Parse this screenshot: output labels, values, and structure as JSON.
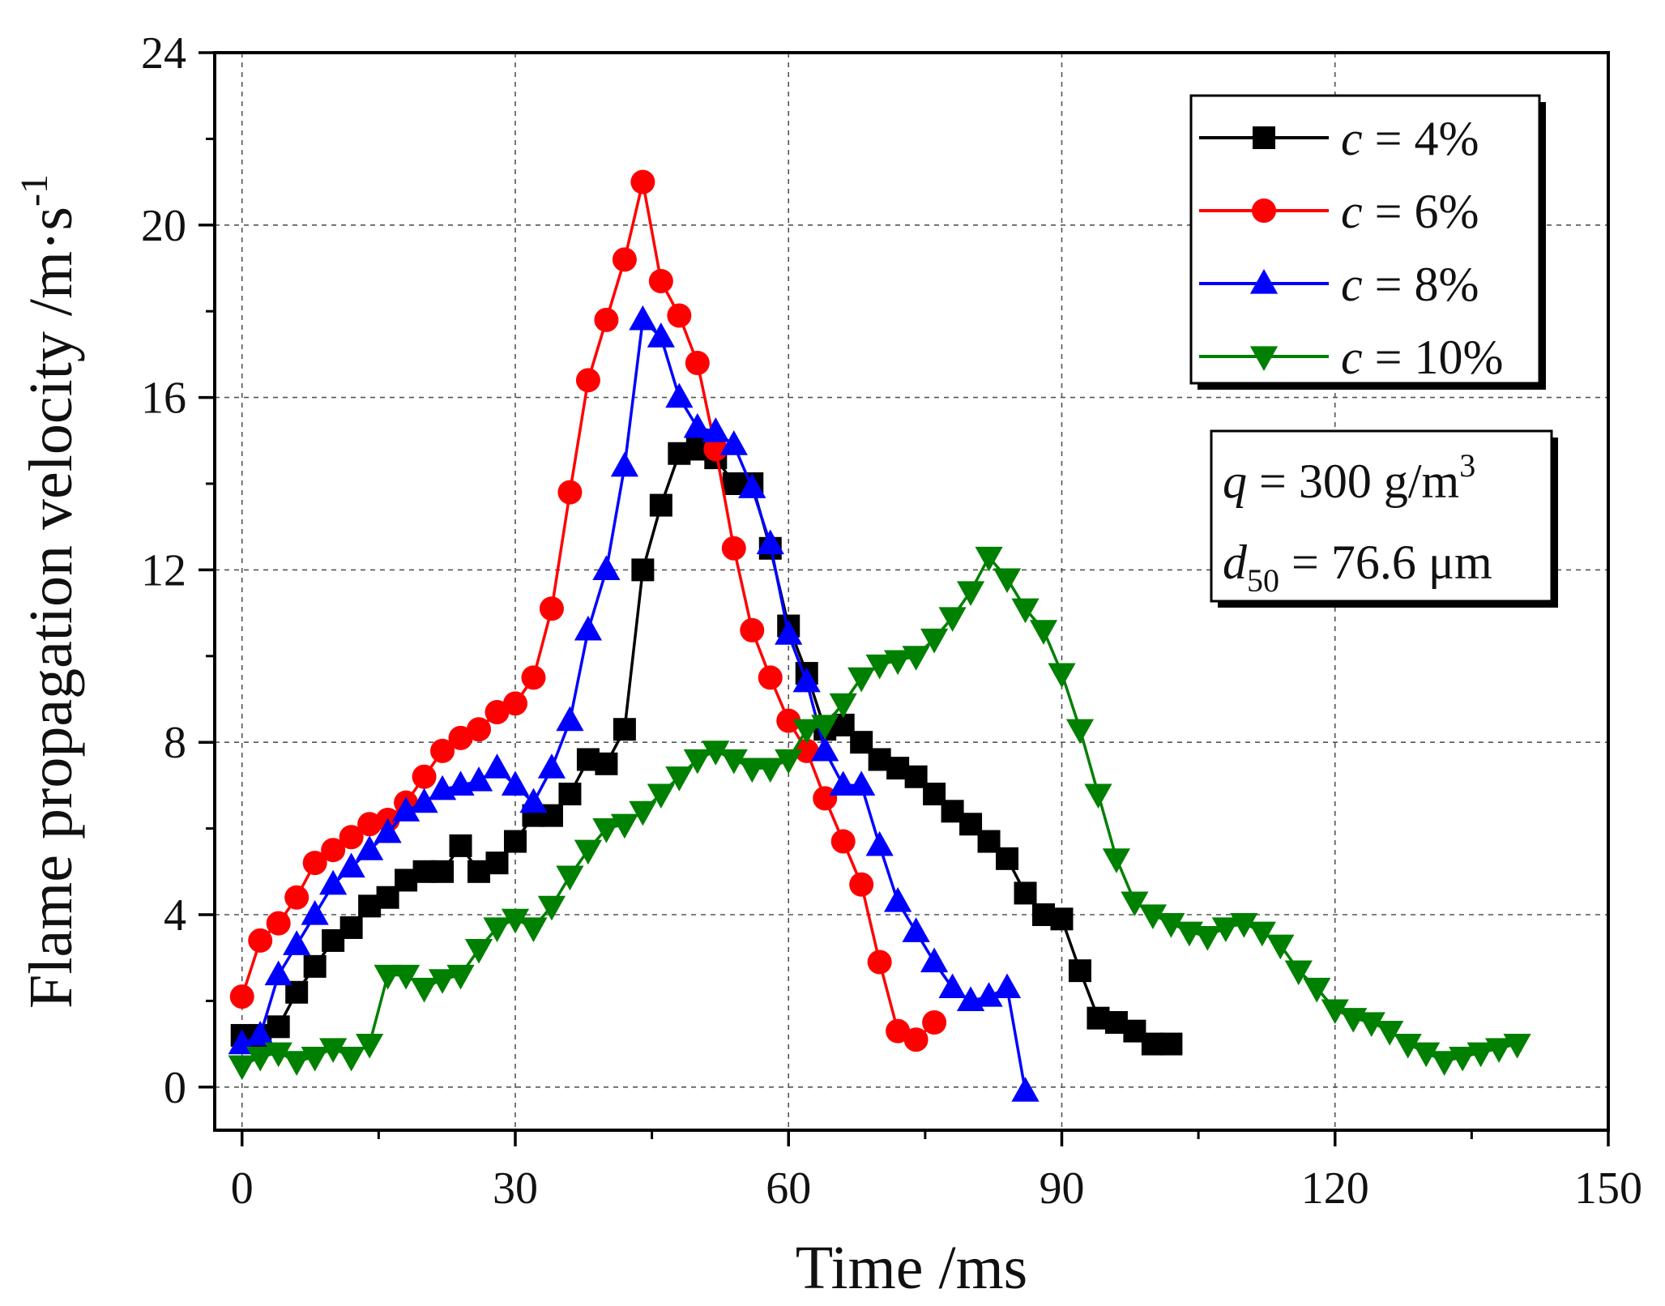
{
  "chart_data": {
    "type": "line",
    "xlabel": "Time /ms",
    "ylabel": "Flame propagation velocity /m·s",
    "ylabel_superscript": "-1",
    "xlim": [
      -3,
      150
    ],
    "ylim": [
      -1,
      24
    ],
    "xticks": [
      0,
      30,
      60,
      90,
      120,
      150
    ],
    "yticks": [
      0,
      4,
      8,
      12,
      16,
      20,
      24
    ],
    "grid": true,
    "legend_position": "top-right",
    "series": [
      {
        "name": "c = 4%",
        "color": "#000000",
        "marker": "square",
        "x": [
          0,
          2,
          4,
          6,
          8,
          10,
          12,
          14,
          16,
          18,
          20,
          22,
          24,
          26,
          28,
          30,
          32,
          34,
          36,
          38,
          40,
          42,
          44,
          46,
          48,
          50,
          52,
          54,
          56,
          58,
          60,
          62,
          64,
          66,
          68,
          70,
          72,
          74,
          76,
          78,
          80,
          82,
          84,
          86,
          88,
          90,
          92,
          94,
          96,
          98,
          100,
          102
        ],
        "y": [
          1.2,
          1.2,
          1.4,
          2.2,
          2.8,
          3.4,
          3.7,
          4.2,
          4.4,
          4.8,
          5.0,
          5.0,
          5.6,
          5.0,
          5.2,
          5.7,
          6.3,
          6.3,
          6.8,
          7.6,
          7.5,
          8.3,
          12.0,
          13.5,
          14.7,
          14.8,
          14.6,
          14.0,
          14.0,
          12.5,
          10.7,
          9.6,
          8.3,
          8.4,
          8.0,
          7.6,
          7.4,
          7.2,
          6.8,
          6.4,
          6.1,
          5.7,
          5.3,
          4.5,
          4.0,
          3.9,
          2.7,
          1.6,
          1.5,
          1.3,
          1.0,
          1.0
        ]
      },
      {
        "name": "c = 6%",
        "color": "#ff0000",
        "marker": "circle",
        "x": [
          0,
          2,
          4,
          6,
          8,
          10,
          12,
          14,
          16,
          18,
          20,
          22,
          24,
          26,
          28,
          30,
          32,
          34,
          36,
          38,
          40,
          42,
          44,
          46,
          48,
          50,
          52,
          54,
          56,
          58,
          60,
          62,
          64,
          66,
          68,
          70,
          72,
          74,
          76
        ],
        "y": [
          2.1,
          3.4,
          3.8,
          4.4,
          5.2,
          5.5,
          5.8,
          6.1,
          6.2,
          6.6,
          7.2,
          7.8,
          8.1,
          8.3,
          8.7,
          8.9,
          9.5,
          11.1,
          13.8,
          16.4,
          17.8,
          19.2,
          21.0,
          18.7,
          17.9,
          16.8,
          14.8,
          12.5,
          10.6,
          9.5,
          8.5,
          7.8,
          6.7,
          5.7,
          4.7,
          2.9,
          1.3,
          1.1,
          1.5
        ]
      },
      {
        "name": "c = 8%",
        "color": "#0000ff",
        "marker": "triangle-up",
        "x": [
          0,
          2,
          4,
          6,
          8,
          10,
          12,
          14,
          16,
          18,
          20,
          22,
          24,
          26,
          28,
          30,
          32,
          34,
          36,
          38,
          40,
          42,
          44,
          46,
          48,
          50,
          52,
          54,
          56,
          58,
          60,
          62,
          64,
          66,
          68,
          70,
          72,
          74,
          76,
          78,
          80,
          82,
          84,
          86
        ],
        "y": [
          1.0,
          1.2,
          2.6,
          3.3,
          4.0,
          4.7,
          5.1,
          5.5,
          5.9,
          6.4,
          6.6,
          6.9,
          7.0,
          7.1,
          7.4,
          7.0,
          6.6,
          7.4,
          8.5,
          10.6,
          12.0,
          14.4,
          17.8,
          17.4,
          16.0,
          15.3,
          15.2,
          14.9,
          13.9,
          12.6,
          10.5,
          9.4,
          7.8,
          7.0,
          7.0,
          5.6,
          4.3,
          3.6,
          2.9,
          2.3,
          2.0,
          2.1,
          2.3,
          -0.1
        ]
      },
      {
        "name": "c = 10%",
        "color": "#008000",
        "marker": "triangle-down",
        "x": [
          0,
          2,
          4,
          6,
          8,
          10,
          12,
          14,
          16,
          18,
          20,
          22,
          24,
          26,
          28,
          30,
          32,
          34,
          36,
          38,
          40,
          42,
          44,
          46,
          48,
          50,
          52,
          54,
          56,
          58,
          60,
          62,
          64,
          66,
          68,
          70,
          72,
          74,
          76,
          78,
          80,
          82,
          84,
          86,
          88,
          90,
          92,
          94,
          96,
          98,
          100,
          102,
          104,
          106,
          108,
          110,
          112,
          114,
          116,
          118,
          120,
          122,
          124,
          126,
          128,
          130,
          132,
          134,
          136,
          138,
          140
        ],
        "y": [
          0.5,
          0.7,
          0.8,
          0.6,
          0.7,
          0.9,
          0.7,
          1.0,
          2.6,
          2.6,
          2.3,
          2.5,
          2.6,
          3.2,
          3.7,
          3.9,
          3.7,
          4.2,
          4.9,
          5.5,
          6.0,
          6.1,
          6.4,
          6.8,
          7.2,
          7.6,
          7.8,
          7.6,
          7.4,
          7.4,
          7.6,
          8.3,
          8.4,
          8.9,
          9.5,
          9.8,
          9.9,
          10.0,
          10.4,
          10.9,
          11.5,
          12.3,
          11.8,
          11.1,
          10.6,
          9.6,
          8.3,
          6.8,
          5.3,
          4.3,
          4.0,
          3.8,
          3.6,
          3.5,
          3.7,
          3.8,
          3.6,
          3.3,
          2.7,
          2.3,
          1.8,
          1.6,
          1.5,
          1.3,
          1.0,
          0.8,
          0.6,
          0.7,
          0.8,
          0.9,
          1.0
        ]
      }
    ],
    "annotations": [
      {
        "label": "q = 300 g/m3",
        "italic": "q",
        "text": " = 300 g/m",
        "superscript": "3"
      },
      {
        "label": "d50 = 76.6 μm",
        "italic": "d",
        "subscript": "50",
        "text": " = 76.6 μm"
      }
    ]
  }
}
